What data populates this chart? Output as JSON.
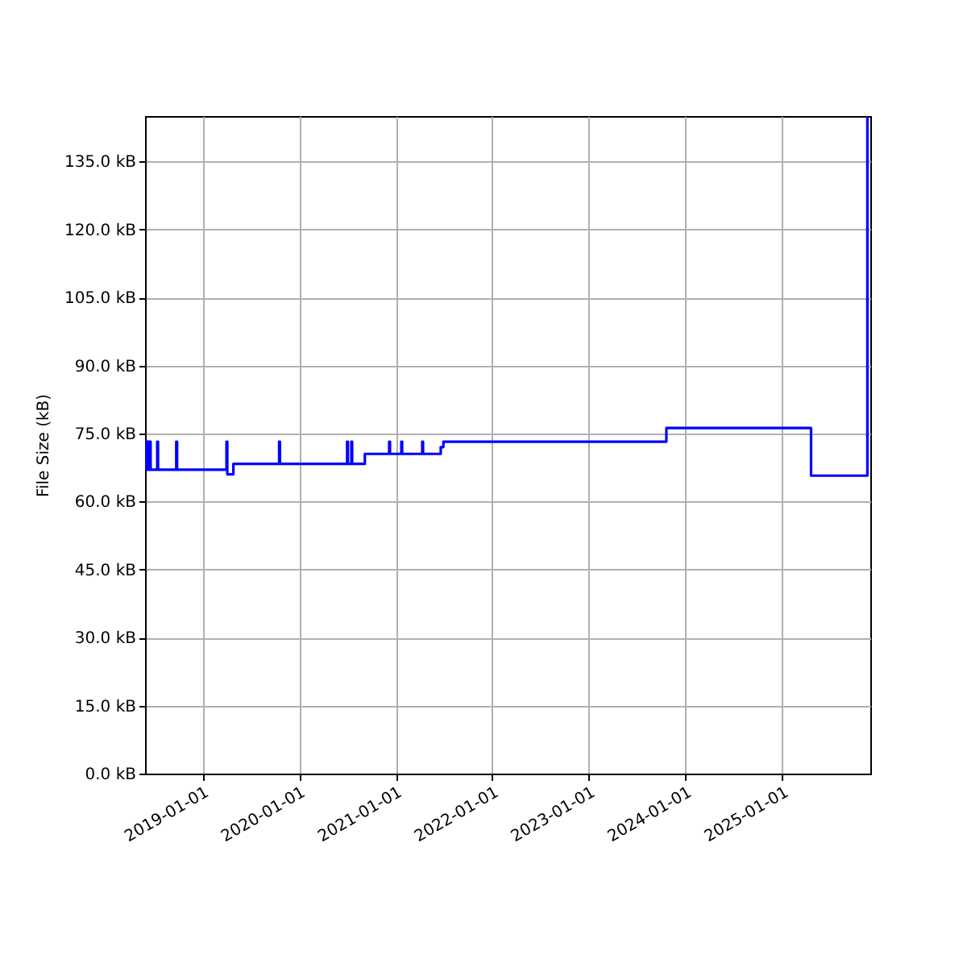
{
  "chart_data": {
    "type": "step",
    "ylabel": "File Size (kB)",
    "x": [
      "2018-05-29",
      "2018-06-01",
      "2018-06-04",
      "2018-06-07",
      "2018-06-10",
      "2018-06-13",
      "2018-06-16",
      "2018-06-19",
      "2018-07-14",
      "2018-07-17",
      "2018-09-24",
      "2018-09-27",
      "2019-04-02",
      "2019-04-05",
      "2019-04-28",
      "2019-10-18",
      "2019-10-21",
      "2020-07-01",
      "2020-07-04",
      "2020-07-17",
      "2020-07-20",
      "2020-09-06",
      "2020-12-07",
      "2020-12-10",
      "2021-01-22",
      "2021-01-25",
      "2021-04-11",
      "2021-04-14",
      "2021-06-20",
      "2021-06-30",
      "2023-10-21",
      "2025-04-20",
      "2025-11-19"
    ],
    "series": [
      {
        "color": "#0000ff",
        "values": [
          73.2,
          67,
          73.2,
          67,
          73.2,
          67,
          73.2,
          67,
          73.2,
          67,
          73.2,
          67,
          73.2,
          66,
          68.3,
          73.2,
          68.3,
          73.2,
          68.3,
          73.2,
          68.3,
          70.5,
          73.2,
          70.5,
          73.2,
          70.5,
          73.2,
          70.5,
          72,
          73.2,
          76.2,
          65.7,
          145
        ]
      }
    ],
    "xlim": [
      "2018-05-29",
      "2025-11-30"
    ],
    "xticks": [
      "2019-01-01",
      "2020-01-01",
      "2021-01-01",
      "2022-01-01",
      "2023-01-01",
      "2024-01-01",
      "2025-01-01"
    ],
    "ylim": [
      0,
      145
    ],
    "yticks": [
      {
        "value": 0,
        "label": "0.0 kB"
      },
      {
        "value": 15,
        "label": "15.0 kB"
      },
      {
        "value": 30,
        "label": "30.0 kB"
      },
      {
        "value": 45,
        "label": "45.0 kB"
      },
      {
        "value": 60,
        "label": "60.0 kB"
      },
      {
        "value": 75,
        "label": "75.0 kB"
      },
      {
        "value": 90,
        "label": "90.0 kB"
      },
      {
        "value": 105,
        "label": "105.0 kB"
      },
      {
        "value": 120,
        "label": "120.0 kB"
      },
      {
        "value": 135,
        "label": "135.0 kB"
      }
    ],
    "grid": true
  }
}
